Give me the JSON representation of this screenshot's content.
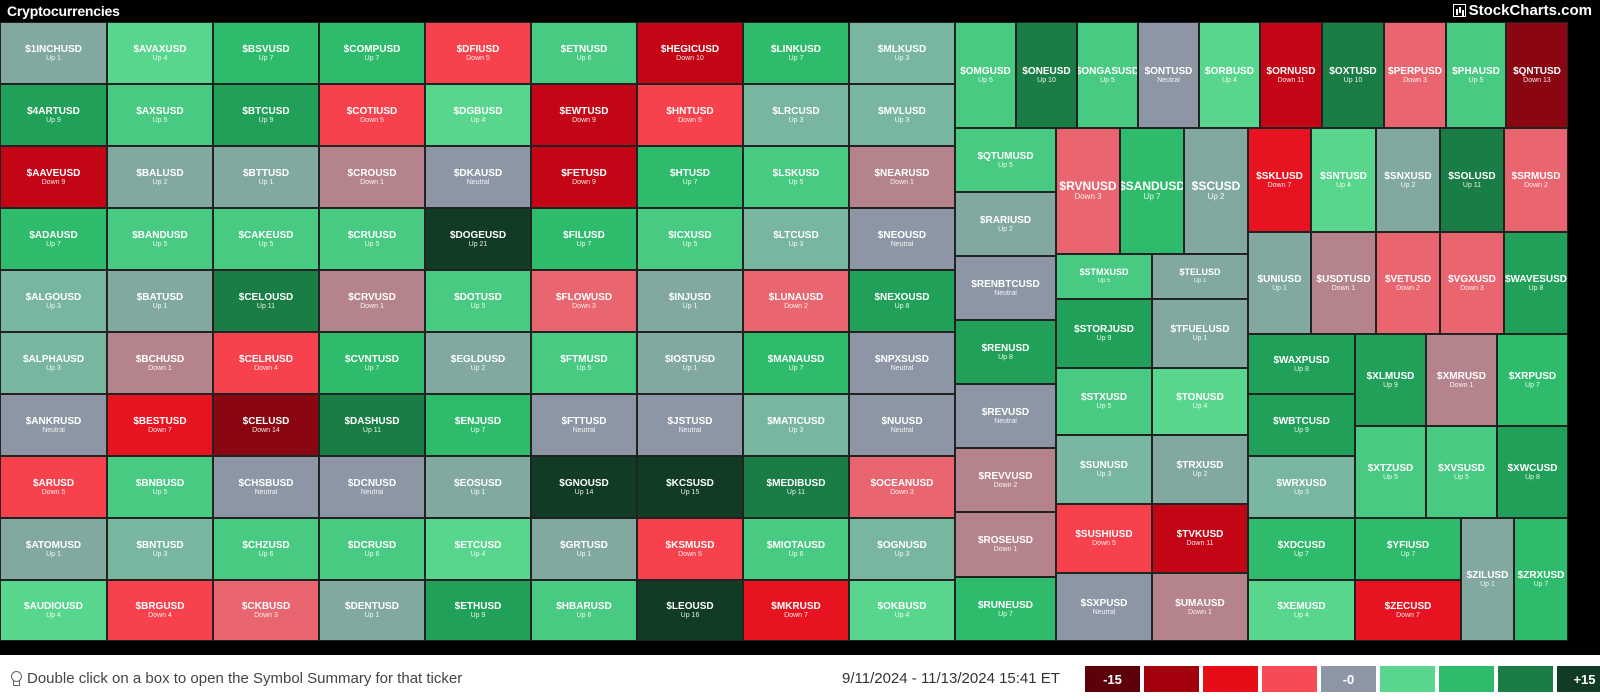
{
  "header": {
    "title": "Cryptocurrencies",
    "brand": "StockCharts.com"
  },
  "colors": {
    "g0": "#58d68d",
    "g1": "#48ca82",
    "g2": "#2ebc6c",
    "g3": "#21a05a",
    "g4": "#1b7d46",
    "g5": "#113b25",
    "n": "#8d96a4",
    "t": "#82a99f",
    "t2": "#78b6a0",
    "m": "#b4838b",
    "r0": "#e9656f",
    "r1": "#f7414d",
    "r2": "#e81321",
    "r3": "#c40515",
    "r4": "#8a0711"
  },
  "tiles": [
    {
      "symbol": "$1INCHUSD",
      "change": "Up 1",
      "color": "t"
    },
    {
      "symbol": "$AVAXUSD",
      "change": "Up 4",
      "color": "g0"
    },
    {
      "symbol": "$BSVUSD",
      "change": "Up 7",
      "color": "g2"
    },
    {
      "symbol": "$COMPUSD",
      "change": "Up 7",
      "color": "g2"
    },
    {
      "symbol": "$DFIUSD",
      "change": "Down 5",
      "color": "r1"
    },
    {
      "symbol": "$ETNUSD",
      "change": "Up 6",
      "color": "g1"
    },
    {
      "symbol": "$HEGICUSD",
      "change": "Down 10",
      "color": "r3"
    },
    {
      "symbol": "$LINKUSD",
      "change": "Up 7",
      "color": "g2"
    },
    {
      "symbol": "$MLKUSD",
      "change": "Up 3",
      "color": "t2"
    },
    {
      "symbol": "$4ARTUSD",
      "change": "Up 9",
      "color": "g3"
    },
    {
      "symbol": "$AXSUSD",
      "change": "Up 5",
      "color": "g1"
    },
    {
      "symbol": "$BTCUSD",
      "change": "Up 9",
      "color": "g3"
    },
    {
      "symbol": "$COTIUSD",
      "change": "Down 5",
      "color": "r1"
    },
    {
      "symbol": "$DGBUSD",
      "change": "Up 4",
      "color": "g0"
    },
    {
      "symbol": "$EWTUSD",
      "change": "Down 9",
      "color": "r3"
    },
    {
      "symbol": "$HNTUSD",
      "change": "Down 5",
      "color": "r1"
    },
    {
      "symbol": "$LRCUSD",
      "change": "Up 3",
      "color": "t2"
    },
    {
      "symbol": "$MVLUSD",
      "change": "Up 3",
      "color": "t2"
    },
    {
      "symbol": "$AAVEUSD",
      "change": "Down 9",
      "color": "r3"
    },
    {
      "symbol": "$BALUSD",
      "change": "Up 2",
      "color": "t"
    },
    {
      "symbol": "$BTTUSD",
      "change": "Up 1",
      "color": "t"
    },
    {
      "symbol": "$CROUSD",
      "change": "Down 1",
      "color": "m"
    },
    {
      "symbol": "$DKAUSD",
      "change": "Neutral",
      "color": "n"
    },
    {
      "symbol": "$FETUSD",
      "change": "Down 9",
      "color": "r3"
    },
    {
      "symbol": "$HTUSD",
      "change": "Up 7",
      "color": "g2"
    },
    {
      "symbol": "$LSKUSD",
      "change": "Up 5",
      "color": "g1"
    },
    {
      "symbol": "$NEARUSD",
      "change": "Down 1",
      "color": "m"
    },
    {
      "symbol": "$ADAUSD",
      "change": "Up 7",
      "color": "g2"
    },
    {
      "symbol": "$BANDUSD",
      "change": "Up 5",
      "color": "g1"
    },
    {
      "symbol": "$CAKEUSD",
      "change": "Up 5",
      "color": "g1"
    },
    {
      "symbol": "$CRUUSD",
      "change": "Up 5",
      "color": "g1"
    },
    {
      "symbol": "$DOGEUSD",
      "change": "Up 21",
      "color": "g5"
    },
    {
      "symbol": "$FILUSD",
      "change": "Up 7",
      "color": "g2"
    },
    {
      "symbol": "$ICXUSD",
      "change": "Up 5",
      "color": "g1"
    },
    {
      "symbol": "$LTCUSD",
      "change": "Up 3",
      "color": "t2"
    },
    {
      "symbol": "$NEOUSD",
      "change": "Neutral",
      "color": "n"
    },
    {
      "symbol": "$ALGOUSD",
      "change": "Up 3",
      "color": "t2"
    },
    {
      "symbol": "$BATUSD",
      "change": "Up 1",
      "color": "t"
    },
    {
      "symbol": "$CELOUSD",
      "change": "Up 11",
      "color": "g4"
    },
    {
      "symbol": "$CRVUSD",
      "change": "Down 1",
      "color": "m"
    },
    {
      "symbol": "$DOTUSD",
      "change": "Up 5",
      "color": "g1"
    },
    {
      "symbol": "$FLOWUSD",
      "change": "Down 3",
      "color": "r0"
    },
    {
      "symbol": "$INJUSD",
      "change": "Up 1",
      "color": "t"
    },
    {
      "symbol": "$LUNAUSD",
      "change": "Down 2",
      "color": "r0"
    },
    {
      "symbol": "$NEXOUSD",
      "change": "Up 8",
      "color": "g3"
    },
    {
      "symbol": "$ALPHAUSD",
      "change": "Up 3",
      "color": "t2"
    },
    {
      "symbol": "$BCHUSD",
      "change": "Down 1",
      "color": "m"
    },
    {
      "symbol": "$CELRUSD",
      "change": "Down 4",
      "color": "r1"
    },
    {
      "symbol": "$CVNTUSD",
      "change": "Up 7",
      "color": "g2"
    },
    {
      "symbol": "$EGLDUSD",
      "change": "Up 2",
      "color": "t"
    },
    {
      "symbol": "$FTMUSD",
      "change": "Up 5",
      "color": "g1"
    },
    {
      "symbol": "$IOSTUSD",
      "change": "Up 1",
      "color": "t"
    },
    {
      "symbol": "$MANAUSD",
      "change": "Up 7",
      "color": "g2"
    },
    {
      "symbol": "$NPXSUSD",
      "change": "Neutral",
      "color": "n"
    },
    {
      "symbol": "$ANKRUSD",
      "change": "Neutral",
      "color": "n"
    },
    {
      "symbol": "$BESTUSD",
      "change": "Down 7",
      "color": "r2"
    },
    {
      "symbol": "$CELUSD",
      "change": "Down 14",
      "color": "r4"
    },
    {
      "symbol": "$DASHUSD",
      "change": "Up 11",
      "color": "g4"
    },
    {
      "symbol": "$ENJUSD",
      "change": "Up 7",
      "color": "g2"
    },
    {
      "symbol": "$FTTUSD",
      "change": "Neutral",
      "color": "n"
    },
    {
      "symbol": "$JSTUSD",
      "change": "Neutral",
      "color": "n"
    },
    {
      "symbol": "$MATICUSD",
      "change": "Up 3",
      "color": "t2"
    },
    {
      "symbol": "$NUUSD",
      "change": "Neutral",
      "color": "n"
    },
    {
      "symbol": "$ARUSD",
      "change": "Down 5",
      "color": "r1"
    },
    {
      "symbol": "$BNBUSD",
      "change": "Up 5",
      "color": "g1"
    },
    {
      "symbol": "$CHSBUSD",
      "change": "Neutral",
      "color": "n"
    },
    {
      "symbol": "$DCNUSD",
      "change": "Neutral",
      "color": "n"
    },
    {
      "symbol": "$EOSUSD",
      "change": "Up 1",
      "color": "t"
    },
    {
      "symbol": "$GNOUSD",
      "change": "Up 14",
      "color": "g5"
    },
    {
      "symbol": "$KCSUSD",
      "change": "Up 15",
      "color": "g5"
    },
    {
      "symbol": "$MEDIBUSD",
      "change": "Up 11",
      "color": "g4"
    },
    {
      "symbol": "$OCEANUSD",
      "change": "Down 3",
      "color": "r0"
    },
    {
      "symbol": "$ATOMUSD",
      "change": "Up 1",
      "color": "t"
    },
    {
      "symbol": "$BNTUSD",
      "change": "Up 3",
      "color": "t2"
    },
    {
      "symbol": "$CHZUSD",
      "change": "Up 6",
      "color": "g1"
    },
    {
      "symbol": "$DCRUSD",
      "change": "Up 6",
      "color": "g1"
    },
    {
      "symbol": "$ETCUSD",
      "change": "Up 4",
      "color": "g0"
    },
    {
      "symbol": "$GRTUSD",
      "change": "Up 1",
      "color": "t"
    },
    {
      "symbol": "$KSMUSD",
      "change": "Down 5",
      "color": "r1"
    },
    {
      "symbol": "$MIOTAUSD",
      "change": "Up 6",
      "color": "g1"
    },
    {
      "symbol": "$OGNUSD",
      "change": "Up 3",
      "color": "t2"
    },
    {
      "symbol": "$AUDIOUSD",
      "change": "Up 4",
      "color": "g0"
    },
    {
      "symbol": "$BRGUSD",
      "change": "Down 4",
      "color": "r1"
    },
    {
      "symbol": "$CKBUSD",
      "change": "Down 3",
      "color": "r0"
    },
    {
      "symbol": "$DENTUSD",
      "change": "Up 1",
      "color": "t"
    },
    {
      "symbol": "$ETHUSD",
      "change": "Up 9",
      "color": "g3"
    },
    {
      "symbol": "$HBARUSD",
      "change": "Up 6",
      "color": "g1"
    },
    {
      "symbol": "$LEOUSD",
      "change": "Up 16",
      "color": "g5"
    },
    {
      "symbol": "$MKRUSD",
      "change": "Down 7",
      "color": "r2"
    },
    {
      "symbol": "$OKBUSD",
      "change": "Up 4",
      "color": "g0"
    },
    {
      "symbol": "$OMGUSD",
      "change": "Up 5",
      "color": "g1"
    },
    {
      "symbol": "$ONEUSD",
      "change": "Up 10",
      "color": "g4"
    },
    {
      "symbol": "$ONGASUSD",
      "change": "Up 5",
      "color": "g1"
    },
    {
      "symbol": "$ONTUSD",
      "change": "Neutral",
      "color": "n"
    },
    {
      "symbol": "$ORBUSD",
      "change": "Up 4",
      "color": "g0"
    },
    {
      "symbol": "$ORNUSD",
      "change": "Down 11",
      "color": "r3"
    },
    {
      "symbol": "$OXTUSD",
      "change": "Up 10",
      "color": "g4"
    },
    {
      "symbol": "$PERPUSD",
      "change": "Down 3",
      "color": "r0"
    },
    {
      "symbol": "$PHAUSD",
      "change": "Up 5",
      "color": "g1"
    },
    {
      "symbol": "$QNTUSD",
      "change": "Down 13",
      "color": "r4"
    },
    {
      "symbol": "$QTUMUSD",
      "change": "Up 5",
      "color": "g1"
    },
    {
      "symbol": "$RARIUSD",
      "change": "Up 2",
      "color": "t"
    },
    {
      "symbol": "$RENBTCUSD",
      "change": "Neutral",
      "color": "n"
    },
    {
      "symbol": "$RENUSD",
      "change": "Up 8",
      "color": "g3"
    },
    {
      "symbol": "$REVUSD",
      "change": "Neutral",
      "color": "n"
    },
    {
      "symbol": "$REVVUSD",
      "change": "Down 2",
      "color": "m"
    },
    {
      "symbol": "$ROSEUSD",
      "change": "Down 1",
      "color": "m"
    },
    {
      "symbol": "$RUNEUSD",
      "change": "Up 7",
      "color": "g2"
    },
    {
      "symbol": "$RVNUSD",
      "change": "Down 3",
      "color": "r0"
    },
    {
      "symbol": "$SANDUSD",
      "change": "Up 7",
      "color": "g2"
    },
    {
      "symbol": "$SCUSD",
      "change": "Up 2",
      "color": "t"
    },
    {
      "symbol": "$STMXUSD",
      "change": "Up 5",
      "color": "g1"
    },
    {
      "symbol": "$STORJUSD",
      "change": "Up 9",
      "color": "g3"
    },
    {
      "symbol": "$STXUSD",
      "change": "Up 5",
      "color": "g1"
    },
    {
      "symbol": "$SUNUSD",
      "change": "Up 3",
      "color": "t2"
    },
    {
      "symbol": "$SUSHIUSD",
      "change": "Down 5",
      "color": "r1"
    },
    {
      "symbol": "$SXPUSD",
      "change": "Neutral",
      "color": "n"
    },
    {
      "symbol": "$TELUSD",
      "change": "Up 1",
      "color": "t"
    },
    {
      "symbol": "$TFUELUSD",
      "change": "Up 1",
      "color": "t"
    },
    {
      "symbol": "$TONUSD",
      "change": "Up 4",
      "color": "g0"
    },
    {
      "symbol": "$TRXUSD",
      "change": "Up 2",
      "color": "t"
    },
    {
      "symbol": "$TVKUSD",
      "change": "Down 11",
      "color": "r3"
    },
    {
      "symbol": "$UMAUSD",
      "change": "Down 1",
      "color": "m"
    },
    {
      "symbol": "$SKLUSD",
      "change": "Down 7",
      "color": "r2"
    },
    {
      "symbol": "$SNTUSD",
      "change": "Up 4",
      "color": "g0"
    },
    {
      "symbol": "$SNXUSD",
      "change": "Up 2",
      "color": "t"
    },
    {
      "symbol": "$SOLUSD",
      "change": "Up 11",
      "color": "g4"
    },
    {
      "symbol": "$SRMUSD",
      "change": "Down 2",
      "color": "r0"
    },
    {
      "symbol": "$UNIUSD",
      "change": "Up 1",
      "color": "t"
    },
    {
      "symbol": "$USDTUSD",
      "change": "Down 1",
      "color": "m"
    },
    {
      "symbol": "$VETUSD",
      "change": "Down 2",
      "color": "r0"
    },
    {
      "symbol": "$VGXUSD",
      "change": "Down 3",
      "color": "r0"
    },
    {
      "symbol": "$WAVESUSD",
      "change": "Up 8",
      "color": "g3"
    },
    {
      "symbol": "$WAXPUSD",
      "change": "Up 8",
      "color": "g3"
    },
    {
      "symbol": "$WBTCUSD",
      "change": "Up 9",
      "color": "g3"
    },
    {
      "symbol": "$WRXUSD",
      "change": "Up 3",
      "color": "t2"
    },
    {
      "symbol": "$XDCUSD",
      "change": "Up 7",
      "color": "g2"
    },
    {
      "symbol": "$XEMUSD",
      "change": "Up 4",
      "color": "g0"
    },
    {
      "symbol": "$XLMUSD",
      "change": "Up 9",
      "color": "g3"
    },
    {
      "symbol": "$XMRUSD",
      "change": "Down 1",
      "color": "m"
    },
    {
      "symbol": "$XRPUSD",
      "change": "Up 7",
      "color": "g2"
    },
    {
      "symbol": "$XTZUSD",
      "change": "Up 5",
      "color": "g1"
    },
    {
      "symbol": "$XVSUSD",
      "change": "Up 5",
      "color": "g1"
    },
    {
      "symbol": "$XWCUSD",
      "change": "Up 8",
      "color": "g3"
    },
    {
      "symbol": "$YFIUSD",
      "change": "Up 7",
      "color": "g2"
    },
    {
      "symbol": "$ZECUSD",
      "change": "Down 7",
      "color": "r2"
    },
    {
      "symbol": "$ZILUSD",
      "change": "Up 1",
      "color": "t"
    },
    {
      "symbol": "$ZRXUSD",
      "change": "Up 7",
      "color": "g2"
    }
  ],
  "footer": {
    "hint": "Double click on a box to open the Symbol Summary for that ticker",
    "date_range": "9/11/2024 - 11/13/2024 15:41 ET"
  },
  "legend": [
    {
      "label": "-15",
      "color": "#5c0009"
    },
    {
      "label": "",
      "color": "#a3000e"
    },
    {
      "label": "",
      "color": "#e60c18"
    },
    {
      "label": "",
      "color": "#f74a55"
    },
    {
      "label": "-0",
      "color": "#8d96a4"
    },
    {
      "label": "",
      "color": "#58d68d"
    },
    {
      "label": "",
      "color": "#2ebc6c"
    },
    {
      "label": "",
      "color": "#1b7d46"
    },
    {
      "label": "+15",
      "color": "#113b25"
    }
  ]
}
